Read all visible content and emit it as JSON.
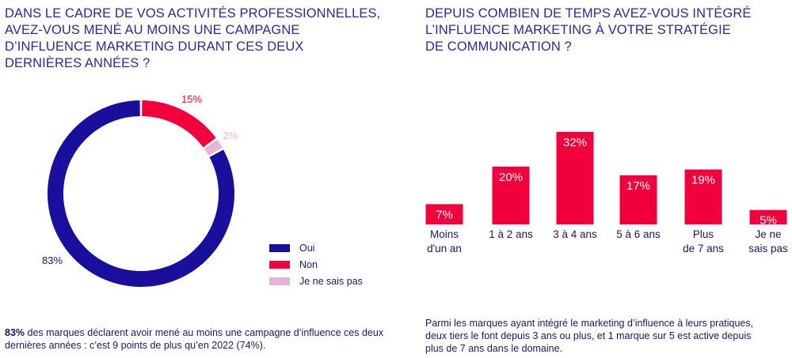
{
  "left": {
    "title": "Dans le cadre de vos activités professionnelles,\navez-vous mené au moins une campagne\nd’influence marketing durant ces deux\ndernières années ?",
    "note_bold": "83%",
    "note_rest": " des marques déclarent avoir mené au moins une campagne d’influence ces deux dernières années : c’est 9 points de plus qu’en 2022 (74%)."
  },
  "right": {
    "title": "Depuis combien de temps avez-vous intégré\nl’influence marketing à votre stratégie\nde communication ?",
    "note": "Parmi les marques ayant intégré le marketing d’influence à leurs pratiques, deux tiers le font depuis 3 ans ou plus, et 1 marque sur 5 est active depuis plus de 7 ans dans le domaine."
  },
  "chart_data": [
    {
      "type": "pie",
      "donut": true,
      "legend": "right",
      "labels": [
        "Oui",
        "Non",
        "Je ne sais pas"
      ],
      "values": [
        83,
        15,
        2
      ],
      "data_labels": [
        "83%",
        "15%",
        "2%"
      ],
      "colors": [
        "#1a0f9c",
        "#f2003c",
        "#e6b3dc"
      ]
    },
    {
      "type": "bar",
      "categories": [
        "Moins\nd'un an",
        "1 à 2 ans",
        "3 à 4 ans",
        "5 à 6 ans",
        "Plus\nde 7 ans",
        "Je ne\nsais pas"
      ],
      "values": [
        7,
        20,
        32,
        17,
        19,
        5
      ],
      "data_labels": [
        "7%",
        "20%",
        "32%",
        "17%",
        "19%",
        "5%"
      ],
      "color": "#f2003c",
      "ylim": [
        0,
        32
      ]
    }
  ]
}
